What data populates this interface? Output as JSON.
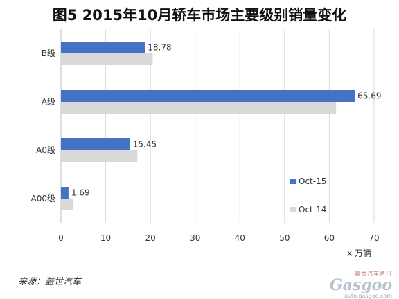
{
  "title": "图5  2015年10月轿车市场主要级别销量变化",
  "source": "来源：盖世汽车",
  "watermark": {
    "cn": "盖世汽车资讯",
    "logo": "Gasgoo",
    "url": "auto.gasgoo.com"
  },
  "colors": {
    "oct15": "#4472c4",
    "oct14": "#d9d9d9",
    "grid": "#d9d9d9",
    "axis": "#bfbfbf"
  },
  "chart_data": {
    "type": "bar",
    "orientation": "horizontal",
    "categories": [
      "B级",
      "A级",
      "A0级",
      "A00级"
    ],
    "series": [
      {
        "name": "Oct-15",
        "values": [
          18.78,
          65.69,
          15.45,
          1.69
        ],
        "labels": [
          "18.78",
          "65.69",
          "15.45",
          "1.69"
        ]
      },
      {
        "name": "Oct-14",
        "values": [
          20.5,
          61.5,
          17.1,
          2.8
        ]
      }
    ],
    "xlabel": "x 万辆",
    "xlim": [
      0,
      70
    ],
    "xticks": [
      0,
      10,
      20,
      30,
      40,
      50,
      60,
      70
    ],
    "grid": true,
    "legend_position": "right-bottom"
  }
}
